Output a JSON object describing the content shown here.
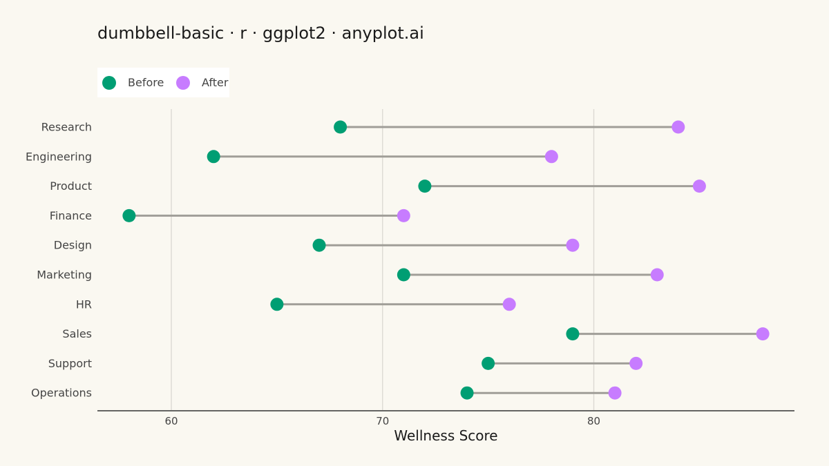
{
  "chart_data": {
    "type": "dumbbell",
    "title": "dumbbell-basic · r · ggplot2 · anyplot.ai",
    "xlabel": "Wellness Score",
    "ylabel": "",
    "xlim": [
      56.5,
      89.5
    ],
    "xticks": [
      60,
      70,
      80
    ],
    "grid": "vertical-major",
    "legend_position": "top-left",
    "categories": [
      "Research",
      "Engineering",
      "Product",
      "Finance",
      "Design",
      "Marketing",
      "HR",
      "Sales",
      "Support",
      "Operations"
    ],
    "series": [
      {
        "name": "Before",
        "color": "#009E73",
        "values": [
          68,
          62,
          72,
          58,
          67,
          71,
          65,
          79,
          75,
          74
        ]
      },
      {
        "name": "After",
        "color": "#C77CFF",
        "values": [
          84,
          78,
          85,
          71,
          79,
          83,
          76,
          88,
          82,
          81
        ]
      }
    ],
    "connector_color": "#A09E98"
  }
}
